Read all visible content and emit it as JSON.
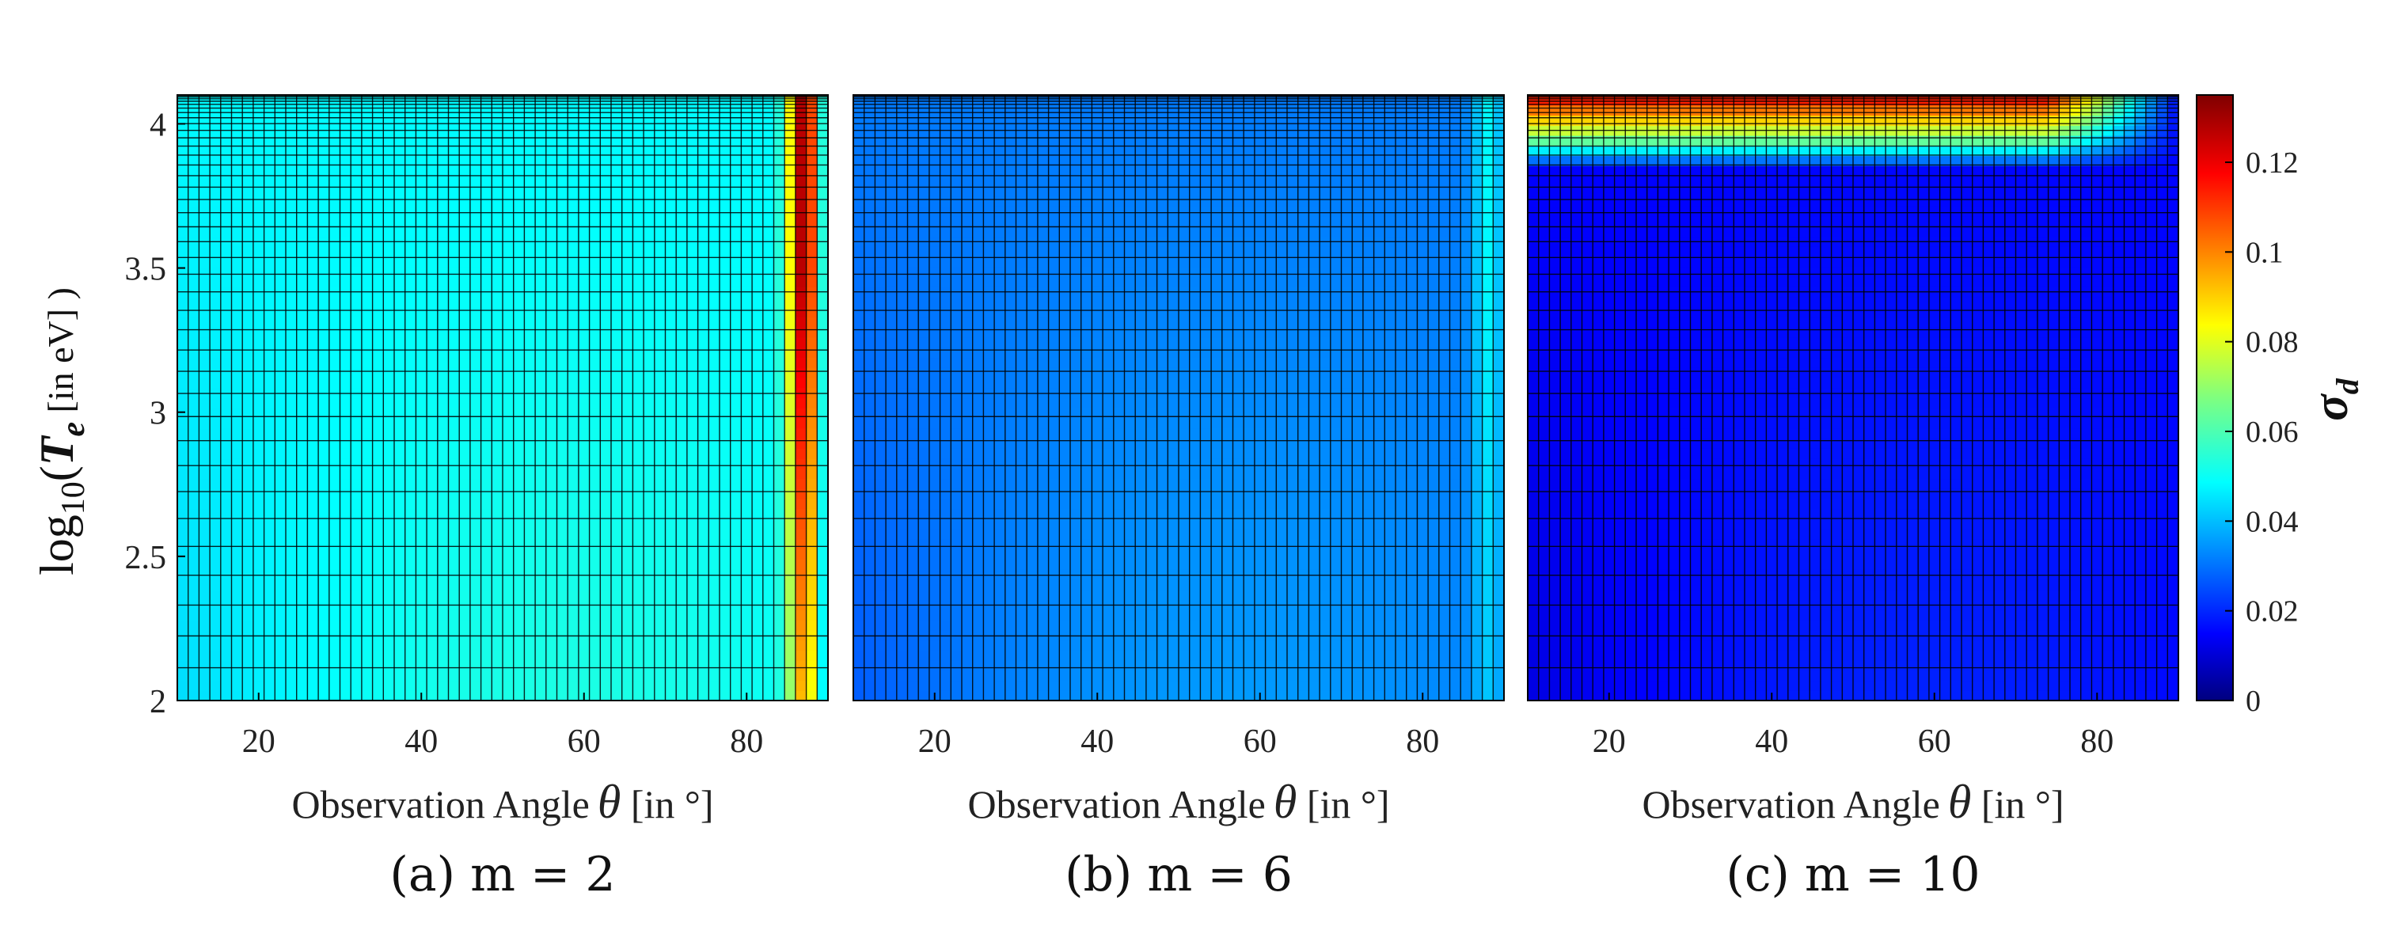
{
  "figure": {
    "colorbar": {
      "label": "σ",
      "label_sub": "d",
      "range": [
        0,
        0.135
      ],
      "ticks": [
        0,
        0.02,
        0.04,
        0.06,
        0.08,
        0.1,
        0.12
      ],
      "tick_labels": [
        "0",
        "0.02",
        "0.04",
        "0.06",
        "0.08",
        "0.1",
        "0.12"
      ],
      "colormap": "jet"
    },
    "ylabel": {
      "prefix": "log",
      "sub": "10",
      "open": "(",
      "var": "T",
      "var_sub": "e",
      "unit": " [in eV] )"
    }
  },
  "chart_data": [
    {
      "type": "heatmap",
      "caption": "(a)  m = 2",
      "xlabel": "Observation Angle",
      "xlabel_symbol": "θ",
      "xlabel_unit": " [in °]",
      "xlim": [
        10,
        90
      ],
      "ylim": [
        2,
        4.1
      ],
      "xticks": [
        20,
        40,
        60,
        80
      ],
      "yticks": [
        2,
        2.5,
        3,
        3.5,
        4
      ],
      "ytick_labels": [
        "2",
        "2.5",
        "3",
        "3.5",
        "4"
      ],
      "color_range": [
        0,
        0.135
      ],
      "base_value": 0.05,
      "ridge": {
        "angle": 87,
        "peak": 0.13
      }
    },
    {
      "type": "heatmap",
      "caption": "(b)  m = 6",
      "xlabel": "Observation Angle",
      "xlabel_symbol": "θ",
      "xlabel_unit": " [in °]",
      "xlim": [
        10,
        90
      ],
      "ylim": [
        2,
        4.1
      ],
      "xticks": [
        20,
        40,
        60,
        80
      ],
      "color_range": [
        0,
        0.135
      ],
      "base_value": 0.033,
      "ridge": {
        "angle": 88,
        "peak": 0.05
      }
    },
    {
      "type": "heatmap",
      "caption": "(c) m = 10",
      "xlabel": "Observation Angle",
      "xlabel_symbol": "θ",
      "xlabel_unit": " [in °]",
      "xlim": [
        10,
        90
      ],
      "ylim": [
        2,
        4.1
      ],
      "xticks": [
        20,
        40,
        60,
        80
      ],
      "color_range": [
        0,
        0.135
      ],
      "base_value": 0.017,
      "top_band": {
        "from": 3.85,
        "peak": 0.12
      }
    }
  ]
}
